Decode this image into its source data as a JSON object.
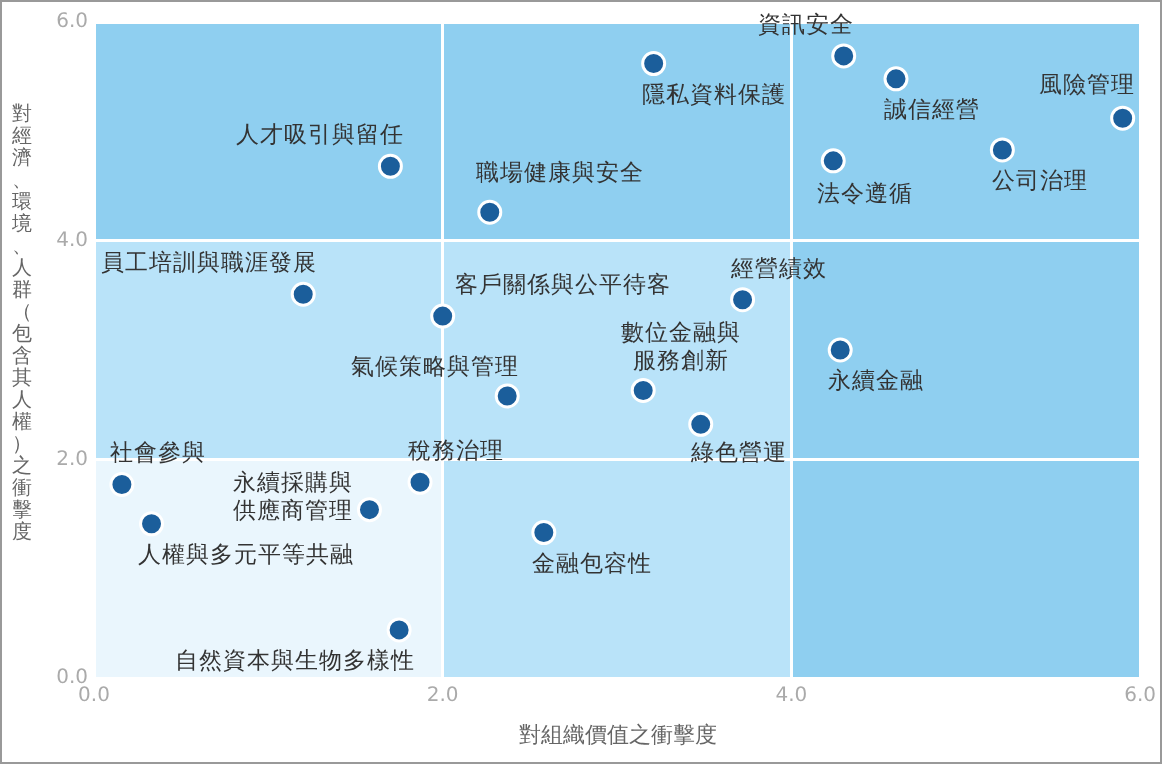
{
  "chart_data": {
    "type": "scatter",
    "xlabel": "對組織價值之衝擊度",
    "ylabel": "對經濟、環境、人群（包含其人權）之衝擊度",
    "x": [
      1.7,
      2.27,
      1.2,
      2.0,
      2.37,
      3.21,
      4.3,
      4.6,
      5.9,
      4.24,
      5.21,
      3.72,
      4.28,
      3.15,
      3.48,
      0.16,
      0.33,
      1.58,
      1.87,
      2.58,
      1.75
    ],
    "series": [
      {
        "color": "#1b5e9b",
        "values": [
          4.68,
          4.26,
          3.51,
          3.31,
          2.58,
          5.62,
          5.69,
          5.48,
          5.12,
          4.73,
          4.83,
          3.46,
          3.0,
          2.63,
          2.32,
          1.77,
          1.41,
          1.54,
          1.79,
          1.33,
          0.44
        ]
      }
    ],
    "xlim": [
      0,
      6
    ],
    "ylim": [
      0,
      6
    ],
    "xticks": [
      {
        "value": 0,
        "label": "0.0"
      },
      {
        "value": 2,
        "label": "2.0"
      },
      {
        "value": 4,
        "label": "4.0"
      },
      {
        "value": 6,
        "label": "6.0"
      }
    ],
    "yticks": [
      {
        "value": 0,
        "label": "0.0"
      },
      {
        "value": 2,
        "label": "2.0"
      },
      {
        "value": 4,
        "label": "4.0"
      },
      {
        "value": 6,
        "label": "6.0"
      }
    ],
    "grid": true,
    "legend": false,
    "marker": "circle",
    "annotations": [
      {
        "text": "人才吸引與留任",
        "x": 1.7,
        "y": 4.68
      },
      {
        "text": "職場健康與安全",
        "x": 2.27,
        "y": 4.26
      },
      {
        "text": "員工培訓與職涯發展",
        "x": 1.2,
        "y": 3.51
      },
      {
        "text": "客戶關係與公平待客",
        "x": 2.0,
        "y": 3.31
      },
      {
        "text": "氣候策略與管理",
        "x": 2.37,
        "y": 2.58
      },
      {
        "text": "隱私資料保護",
        "x": 3.21,
        "y": 5.62
      },
      {
        "text": "資訊安全",
        "x": 4.3,
        "y": 5.69
      },
      {
        "text": "誠信經營",
        "x": 4.6,
        "y": 5.48
      },
      {
        "text": "風險管理",
        "x": 5.9,
        "y": 5.12
      },
      {
        "text": "法令遵循",
        "x": 4.24,
        "y": 4.73
      },
      {
        "text": "公司治理",
        "x": 5.21,
        "y": 4.83
      },
      {
        "text": "經營績效",
        "x": 3.72,
        "y": 3.46
      },
      {
        "text": "永續金融",
        "x": 4.28,
        "y": 3.0
      },
      {
        "text": "數位金融與服務創新",
        "x": 3.15,
        "y": 2.63
      },
      {
        "text": "綠色營運",
        "x": 3.48,
        "y": 2.32
      },
      {
        "text": "社會參與",
        "x": 0.16,
        "y": 1.77
      },
      {
        "text": "人權與多元平等共融",
        "x": 0.33,
        "y": 1.41
      },
      {
        "text": "永續採購與供應商管理",
        "x": 1.58,
        "y": 1.54
      },
      {
        "text": "稅務治理",
        "x": 1.87,
        "y": 1.79
      },
      {
        "text": "金融包容性",
        "x": 2.58,
        "y": 1.33
      },
      {
        "text": "自然資本與生物多樣性",
        "x": 1.75,
        "y": 0.44
      }
    ]
  }
}
